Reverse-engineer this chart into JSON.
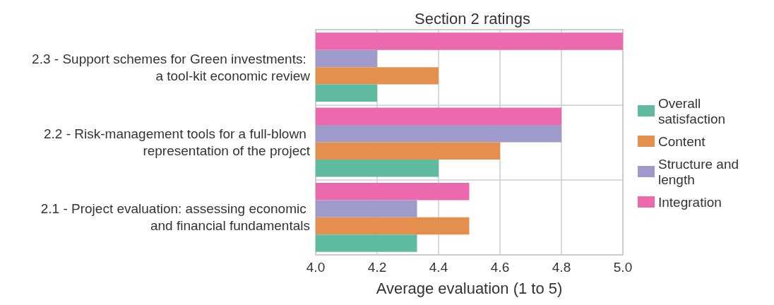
{
  "chart_data": {
    "type": "bar",
    "orientation": "horizontal",
    "title": "Section 2 ratings",
    "xlabel": "Average evaluation (1 to 5)",
    "categories": [
      "2.3 - Support schemes for Green investments: a tool-kit economic review",
      "2.2 - Risk-management tools for a full-blown representation of the project",
      "2.1 - Project evaluation: assessing economic and financial fundamentals"
    ],
    "series": [
      {
        "name": "Overall satisfaction",
        "color": "#5fbb9f",
        "values": [
          4.2,
          4.4,
          4.33
        ]
      },
      {
        "name": "Content",
        "color": "#e48f4e",
        "values": [
          4.4,
          4.6,
          4.5
        ]
      },
      {
        "name": "Structure and length",
        "color": "#9e9bcb",
        "values": [
          4.2,
          4.8,
          4.33
        ]
      },
      {
        "name": "Integration",
        "color": "#ed69ad",
        "values": [
          5.0,
          4.8,
          4.5
        ]
      }
    ],
    "xlim": [
      4.0,
      5.0
    ],
    "xticks": [
      {
        "value": 4.0,
        "label": "4.0"
      },
      {
        "value": 4.2,
        "label": "4.2"
      },
      {
        "value": 4.4,
        "label": "4.4"
      },
      {
        "value": 4.6,
        "label": "4.6"
      },
      {
        "value": 4.8,
        "label": "4.8"
      },
      {
        "value": 5.0,
        "label": "5.0"
      }
    ],
    "grid": true,
    "legend": "right"
  }
}
